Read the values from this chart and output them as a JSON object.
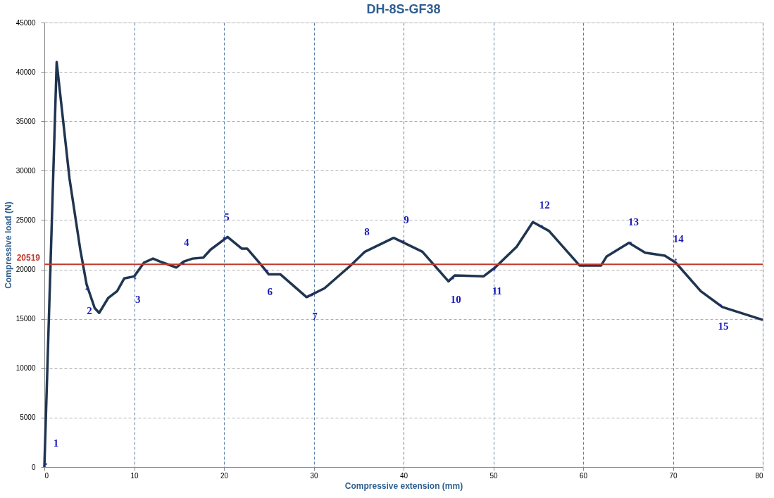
{
  "chart_data": {
    "type": "line",
    "title": "DH-8S-GF38",
    "xlabel": "Compressive extension (mm)",
    "ylabel": "Compressive load (N)",
    "xlim": [
      0,
      80
    ],
    "xticks": [
      0,
      10,
      20,
      30,
      40,
      50,
      60,
      70,
      80
    ],
    "ylim": [
      0,
      45000
    ],
    "yticks": [
      0,
      5000,
      10000,
      15000,
      20000,
      25000,
      30000,
      35000,
      40000,
      45000
    ],
    "grid": true,
    "marker": "none",
    "line_style": "solid",
    "series": [
      {
        "color": "#1f3550",
        "x": [
          0,
          1.37,
          2.8,
          4.0,
          4.7,
          5.6,
          6.1,
          7.1,
          8.1,
          8.9,
          10.0,
          11.1,
          12.1,
          12.9,
          14.7,
          15.5,
          16.5,
          17.7,
          18.5,
          20.4,
          22.0,
          22.6,
          24.2,
          25.0,
          26.3,
          29.2,
          31.2,
          34.1,
          35.7,
          38.9,
          42.1,
          45.0,
          45.7,
          48.9,
          50.2,
          52.6,
          54.4,
          56.2,
          59.6,
          62.0,
          62.6,
          65.1,
          66.9,
          69.1,
          70.3,
          73.1,
          75.5,
          80.0
        ],
        "values": [
          0,
          41000,
          29200,
          22000,
          18500,
          16100,
          15600,
          17100,
          17800,
          19100,
          19300,
          20700,
          21100,
          20800,
          20200,
          20800,
          21100,
          21200,
          22000,
          23300,
          22100,
          22100,
          20400,
          19500,
          19500,
          17200,
          18100,
          20400,
          21800,
          23200,
          21800,
          18800,
          19400,
          19300,
          20200,
          22300,
          24800,
          23900,
          20400,
          20400,
          21300,
          22700,
          21700,
          21400,
          20700,
          17800,
          16200,
          14900
        ]
      }
    ],
    "ref_lines": [
      {
        "axis": "y",
        "value": 20519,
        "label": "20519",
        "color": "#c0392b"
      }
    ],
    "annotations": [
      {
        "text": "1",
        "x": 0.2,
        "y": 300
      },
      {
        "text": "2",
        "x": 4.7,
        "y": 18000
      },
      {
        "text": "3",
        "x": 10.1,
        "y": 19100
      },
      {
        "text": "4",
        "x": 15.5,
        "y": 20600
      },
      {
        "text": "5",
        "x": 20.0,
        "y": 23200
      },
      {
        "text": "6",
        "x": 24.8,
        "y": 19900
      },
      {
        "text": "7",
        "x": 29.8,
        "y": 17400
      },
      {
        "text": "8",
        "x": 35.6,
        "y": 21700
      },
      {
        "text": "9",
        "x": 40.0,
        "y": 22900
      },
      {
        "text": "10",
        "x": 45.5,
        "y": 19100
      },
      {
        "text": "11",
        "x": 50.1,
        "y": 20000
      },
      {
        "text": "12",
        "x": 55.4,
        "y": 24400
      },
      {
        "text": "13",
        "x": 65.3,
        "y": 22700
      },
      {
        "text": "14",
        "x": 70.3,
        "y": 21000
      },
      {
        "text": "15",
        "x": 75.3,
        "y": 16400
      }
    ]
  }
}
